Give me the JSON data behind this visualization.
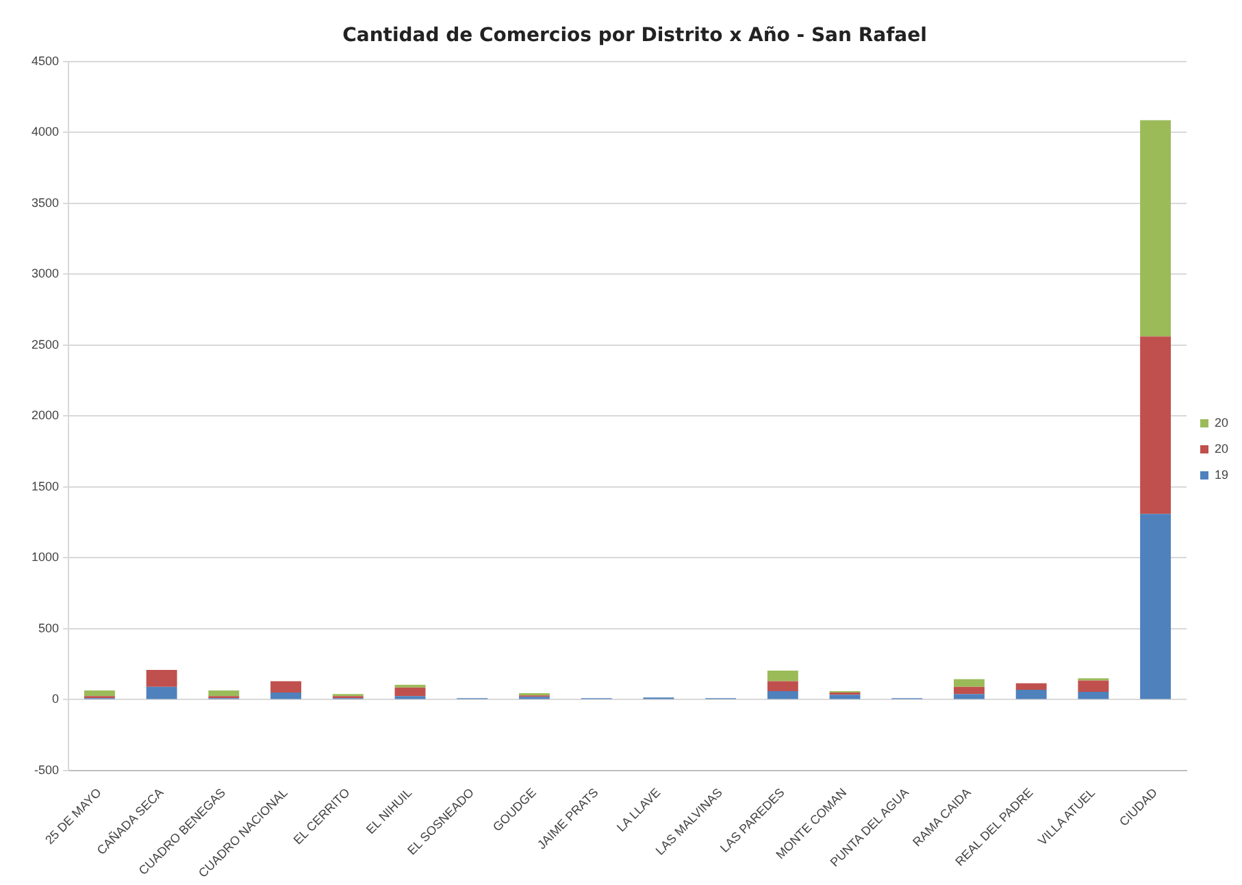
{
  "chart_data": {
    "type": "bar",
    "title": "Cantidad de Comercios por Distrito x Año - San Rafael",
    "stacked": true,
    "categories": [
      "25 DE MAYO",
      "CAÑADA SECA",
      "CUADRO BENEGAS",
      "CUADRO NACIONAL",
      "EL CERRITO",
      "EL NIHUIL",
      "EL SOSNEADO",
      "GOUDGE",
      "JAIME PRATS",
      "LA LLAVE",
      "LAS MALVINAS",
      "LAS PAREDES",
      "MONTE COMAN",
      "PUNTA DEL AGUA",
      "RAMA CAIDA",
      "REAL DEL PADRE",
      "VILLA ATUEL",
      "CIUDAD"
    ],
    "series": [
      {
        "name": "19",
        "color": "#4f81bd",
        "values": [
          10,
          90,
          10,
          50,
          10,
          25,
          10,
          20,
          10,
          15,
          10,
          60,
          35,
          10,
          40,
          70,
          55,
          1310
        ]
      },
      {
        "name": "20",
        "color": "#c0504d",
        "values": [
          15,
          120,
          15,
          80,
          15,
          60,
          null,
          10,
          null,
          null,
          null,
          70,
          15,
          null,
          50,
          45,
          80,
          1250
        ]
      },
      {
        "name": "20",
        "color": "#9bbb59",
        "values": [
          40,
          null,
          40,
          null,
          15,
          20,
          null,
          15,
          null,
          null,
          null,
          75,
          10,
          null,
          55,
          null,
          15,
          1525
        ]
      }
    ],
    "ylim": [
      -500,
      4500
    ],
    "yticks": [
      -500,
      0,
      500,
      1000,
      1500,
      2000,
      2500,
      3000,
      3500,
      4000,
      4500
    ],
    "grid": "y",
    "legend": "right"
  }
}
